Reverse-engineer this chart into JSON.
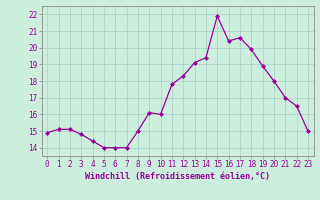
{
  "x": [
    0,
    1,
    2,
    3,
    4,
    5,
    6,
    7,
    8,
    9,
    10,
    11,
    12,
    13,
    14,
    15,
    16,
    17,
    18,
    19,
    20,
    21,
    22,
    23
  ],
  "y": [
    14.9,
    15.1,
    15.1,
    14.8,
    14.4,
    14.0,
    14.0,
    14.0,
    15.0,
    16.1,
    16.0,
    17.8,
    18.3,
    19.1,
    19.4,
    21.9,
    20.4,
    20.6,
    19.9,
    18.9,
    18.0,
    17.0,
    16.5,
    15.0
  ],
  "line_color": "#990099",
  "marker": "D",
  "marker_size": 2.0,
  "line_width": 0.9,
  "bg_color": "#cceedd",
  "grid_color": "#aacccc",
  "xlabel": "Windchill (Refroidissement éolien,°C)",
  "xlabel_fontsize": 6,
  "tick_fontsize": 5.5,
  "ylim": [
    13.5,
    22.5
  ],
  "yticks": [
    14,
    15,
    16,
    17,
    18,
    19,
    20,
    21,
    22
  ],
  "xticks": [
    0,
    1,
    2,
    3,
    4,
    5,
    6,
    7,
    8,
    9,
    10,
    11,
    12,
    13,
    14,
    15,
    16,
    17,
    18,
    19,
    20,
    21,
    22,
    23
  ],
  "spine_color": "#888888"
}
